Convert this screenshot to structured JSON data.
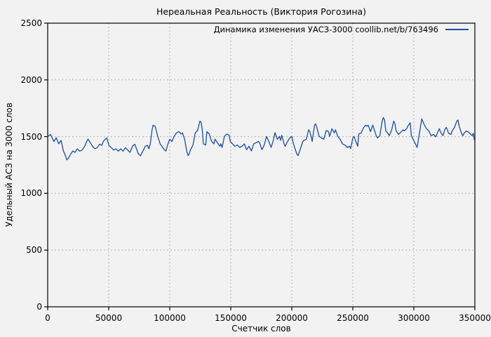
{
  "figure": {
    "background": "#f2f2f2",
    "grid_color": "#b1b1b1",
    "frame_color": "#000000"
  },
  "chart_data": {
    "type": "line",
    "title": "Нереальная Реальность (Виктория Рогозина)",
    "xlabel": "Счетчик слов",
    "ylabel": "Удельный АСЗ на 3000 слов",
    "xlim": [
      0,
      350000
    ],
    "ylim": [
      0,
      2500
    ],
    "xticks": [
      0,
      50000,
      100000,
      150000,
      200000,
      250000,
      300000,
      350000
    ],
    "yticks": [
      0,
      500,
      1000,
      1500,
      2000,
      2500
    ],
    "grid": "dashed",
    "legend_position": "top-right-inside",
    "series": [
      {
        "name": "Динамика изменения УАСЗ-3000 coollib.net/b/763496",
        "color": "#1c4da0",
        "points": [
          [
            0,
            1502
          ],
          [
            2300,
            1518
          ],
          [
            5200,
            1456
          ],
          [
            7000,
            1491
          ],
          [
            9000,
            1436
          ],
          [
            10900,
            1467
          ],
          [
            12800,
            1375
          ],
          [
            14500,
            1332
          ],
          [
            15700,
            1295
          ],
          [
            17000,
            1310
          ],
          [
            18500,
            1340
          ],
          [
            20500,
            1373
          ],
          [
            22400,
            1362
          ],
          [
            24300,
            1393
          ],
          [
            26200,
            1372
          ],
          [
            28200,
            1382
          ],
          [
            30100,
            1413
          ],
          [
            32000,
            1457
          ],
          [
            33000,
            1479
          ],
          [
            34900,
            1447
          ],
          [
            36800,
            1414
          ],
          [
            38700,
            1393
          ],
          [
            40600,
            1403
          ],
          [
            42500,
            1434
          ],
          [
            44400,
            1424
          ],
          [
            45500,
            1457
          ],
          [
            47300,
            1478
          ],
          [
            48400,
            1488
          ],
          [
            50200,
            1424
          ],
          [
            52100,
            1403
          ],
          [
            54000,
            1382
          ],
          [
            55900,
            1393
          ],
          [
            57900,
            1372
          ],
          [
            59800,
            1393
          ],
          [
            61700,
            1372
          ],
          [
            63600,
            1403
          ],
          [
            65500,
            1382
          ],
          [
            67400,
            1361
          ],
          [
            69400,
            1414
          ],
          [
            71300,
            1434
          ],
          [
            72400,
            1403
          ],
          [
            74100,
            1352
          ],
          [
            76000,
            1331
          ],
          [
            78000,
            1372
          ],
          [
            79900,
            1414
          ],
          [
            81800,
            1424
          ],
          [
            82900,
            1393
          ],
          [
            84000,
            1434
          ],
          [
            85500,
            1560
          ],
          [
            86400,
            1601
          ],
          [
            88100,
            1590
          ],
          [
            90200,
            1502
          ],
          [
            92100,
            1436
          ],
          [
            94100,
            1406
          ],
          [
            95500,
            1385
          ],
          [
            96900,
            1374
          ],
          [
            98500,
            1436
          ],
          [
            100000,
            1477
          ],
          [
            101700,
            1457
          ],
          [
            103600,
            1502
          ],
          [
            105500,
            1533
          ],
          [
            107500,
            1544
          ],
          [
            109400,
            1523
          ],
          [
            110400,
            1533
          ],
          [
            112200,
            1477
          ],
          [
            114100,
            1364
          ],
          [
            115100,
            1333
          ],
          [
            116100,
            1353
          ],
          [
            117000,
            1385
          ],
          [
            119000,
            1426
          ],
          [
            120900,
            1533
          ],
          [
            122800,
            1554
          ],
          [
            124700,
            1637
          ],
          [
            125700,
            1627
          ],
          [
            126600,
            1565
          ],
          [
            127600,
            1436
          ],
          [
            129500,
            1426
          ],
          [
            130400,
            1544
          ],
          [
            132400,
            1523
          ],
          [
            134300,
            1457
          ],
          [
            136200,
            1436
          ],
          [
            137100,
            1477
          ],
          [
            139100,
            1446
          ],
          [
            141000,
            1415
          ],
          [
            141900,
            1436
          ],
          [
            142900,
            1405
          ],
          [
            144800,
            1502
          ],
          [
            145700,
            1512
          ],
          [
            146700,
            1523
          ],
          [
            148700,
            1512
          ],
          [
            149600,
            1457
          ],
          [
            151500,
            1436
          ],
          [
            153400,
            1415
          ],
          [
            155400,
            1426
          ],
          [
            157300,
            1405
          ],
          [
            159200,
            1415
          ],
          [
            161100,
            1436
          ],
          [
            163000,
            1385
          ],
          [
            165000,
            1415
          ],
          [
            166900,
            1374
          ],
          [
            168800,
            1436
          ],
          [
            170700,
            1446
          ],
          [
            172600,
            1457
          ],
          [
            173600,
            1446
          ],
          [
            175500,
            1385
          ],
          [
            177400,
            1426
          ],
          [
            179300,
            1502
          ],
          [
            181200,
            1457
          ],
          [
            183100,
            1405
          ],
          [
            185100,
            1477
          ],
          [
            186200,
            1535
          ],
          [
            188100,
            1477
          ],
          [
            189800,
            1502
          ],
          [
            190800,
            1467
          ],
          [
            191800,
            1512
          ],
          [
            193700,
            1436
          ],
          [
            194600,
            1415
          ],
          [
            196500,
            1457
          ],
          [
            198400,
            1488
          ],
          [
            200000,
            1502
          ],
          [
            201400,
            1436
          ],
          [
            203300,
            1374
          ],
          [
            204300,
            1343
          ],
          [
            205200,
            1333
          ],
          [
            207100,
            1395
          ],
          [
            209000,
            1457
          ],
          [
            210000,
            1467
          ],
          [
            211900,
            1477
          ],
          [
            213800,
            1560
          ],
          [
            214800,
            1544
          ],
          [
            216700,
            1457
          ],
          [
            218600,
            1601
          ],
          [
            219500,
            1612
          ],
          [
            220500,
            1580
          ],
          [
            222400,
            1502
          ],
          [
            224300,
            1488
          ],
          [
            226200,
            1477
          ],
          [
            228200,
            1554
          ],
          [
            230100,
            1544
          ],
          [
            231000,
            1502
          ],
          [
            232900,
            1570
          ],
          [
            234800,
            1533
          ],
          [
            235800,
            1560
          ],
          [
            237700,
            1502
          ],
          [
            239600,
            1477
          ],
          [
            241500,
            1436
          ],
          [
            243500,
            1426
          ],
          [
            245400,
            1405
          ],
          [
            247300,
            1415
          ],
          [
            248200,
            1395
          ],
          [
            250000,
            1488
          ],
          [
            251100,
            1502
          ],
          [
            252100,
            1467
          ],
          [
            254000,
            1415
          ],
          [
            254900,
            1523
          ],
          [
            256900,
            1533
          ],
          [
            258800,
            1580
          ],
          [
            260700,
            1601
          ],
          [
            261600,
            1591
          ],
          [
            262600,
            1601
          ],
          [
            264500,
            1544
          ],
          [
            266300,
            1602
          ],
          [
            267600,
            1560
          ],
          [
            269200,
            1508
          ],
          [
            270200,
            1488
          ],
          [
            272100,
            1508
          ],
          [
            274000,
            1636
          ],
          [
            275000,
            1668
          ],
          [
            276000,
            1647
          ],
          [
            277000,
            1550
          ],
          [
            278800,
            1529
          ],
          [
            279800,
            1508
          ],
          [
            281600,
            1550
          ],
          [
            283500,
            1636
          ],
          [
            284500,
            1615
          ],
          [
            285500,
            1550
          ],
          [
            287400,
            1519
          ],
          [
            289300,
            1539
          ],
          [
            291200,
            1560
          ],
          [
            292200,
            1550
          ],
          [
            294100,
            1570
          ],
          [
            295000,
            1591
          ],
          [
            297000,
            1622
          ],
          [
            298000,
            1508
          ],
          [
            299800,
            1467
          ],
          [
            300800,
            1446
          ],
          [
            302700,
            1405
          ],
          [
            304600,
            1529
          ],
          [
            306500,
            1657
          ],
          [
            308500,
            1605
          ],
          [
            310400,
            1570
          ],
          [
            312300,
            1550
          ],
          [
            314200,
            1508
          ],
          [
            316100,
            1519
          ],
          [
            318000,
            1498
          ],
          [
            320000,
            1550
          ],
          [
            320900,
            1570
          ],
          [
            321900,
            1539
          ],
          [
            323800,
            1508
          ],
          [
            325700,
            1570
          ],
          [
            326600,
            1581
          ],
          [
            328500,
            1529
          ],
          [
            330400,
            1519
          ],
          [
            331400,
            1550
          ],
          [
            333300,
            1581
          ],
          [
            335200,
            1636
          ],
          [
            336200,
            1647
          ],
          [
            337200,
            1591
          ],
          [
            339100,
            1529
          ],
          [
            340100,
            1508
          ],
          [
            341100,
            1529
          ],
          [
            343000,
            1550
          ],
          [
            344900,
            1539
          ],
          [
            346800,
            1519
          ],
          [
            347800,
            1508
          ],
          [
            348700,
            1529
          ],
          [
            349700,
            1467
          ]
        ]
      }
    ]
  }
}
